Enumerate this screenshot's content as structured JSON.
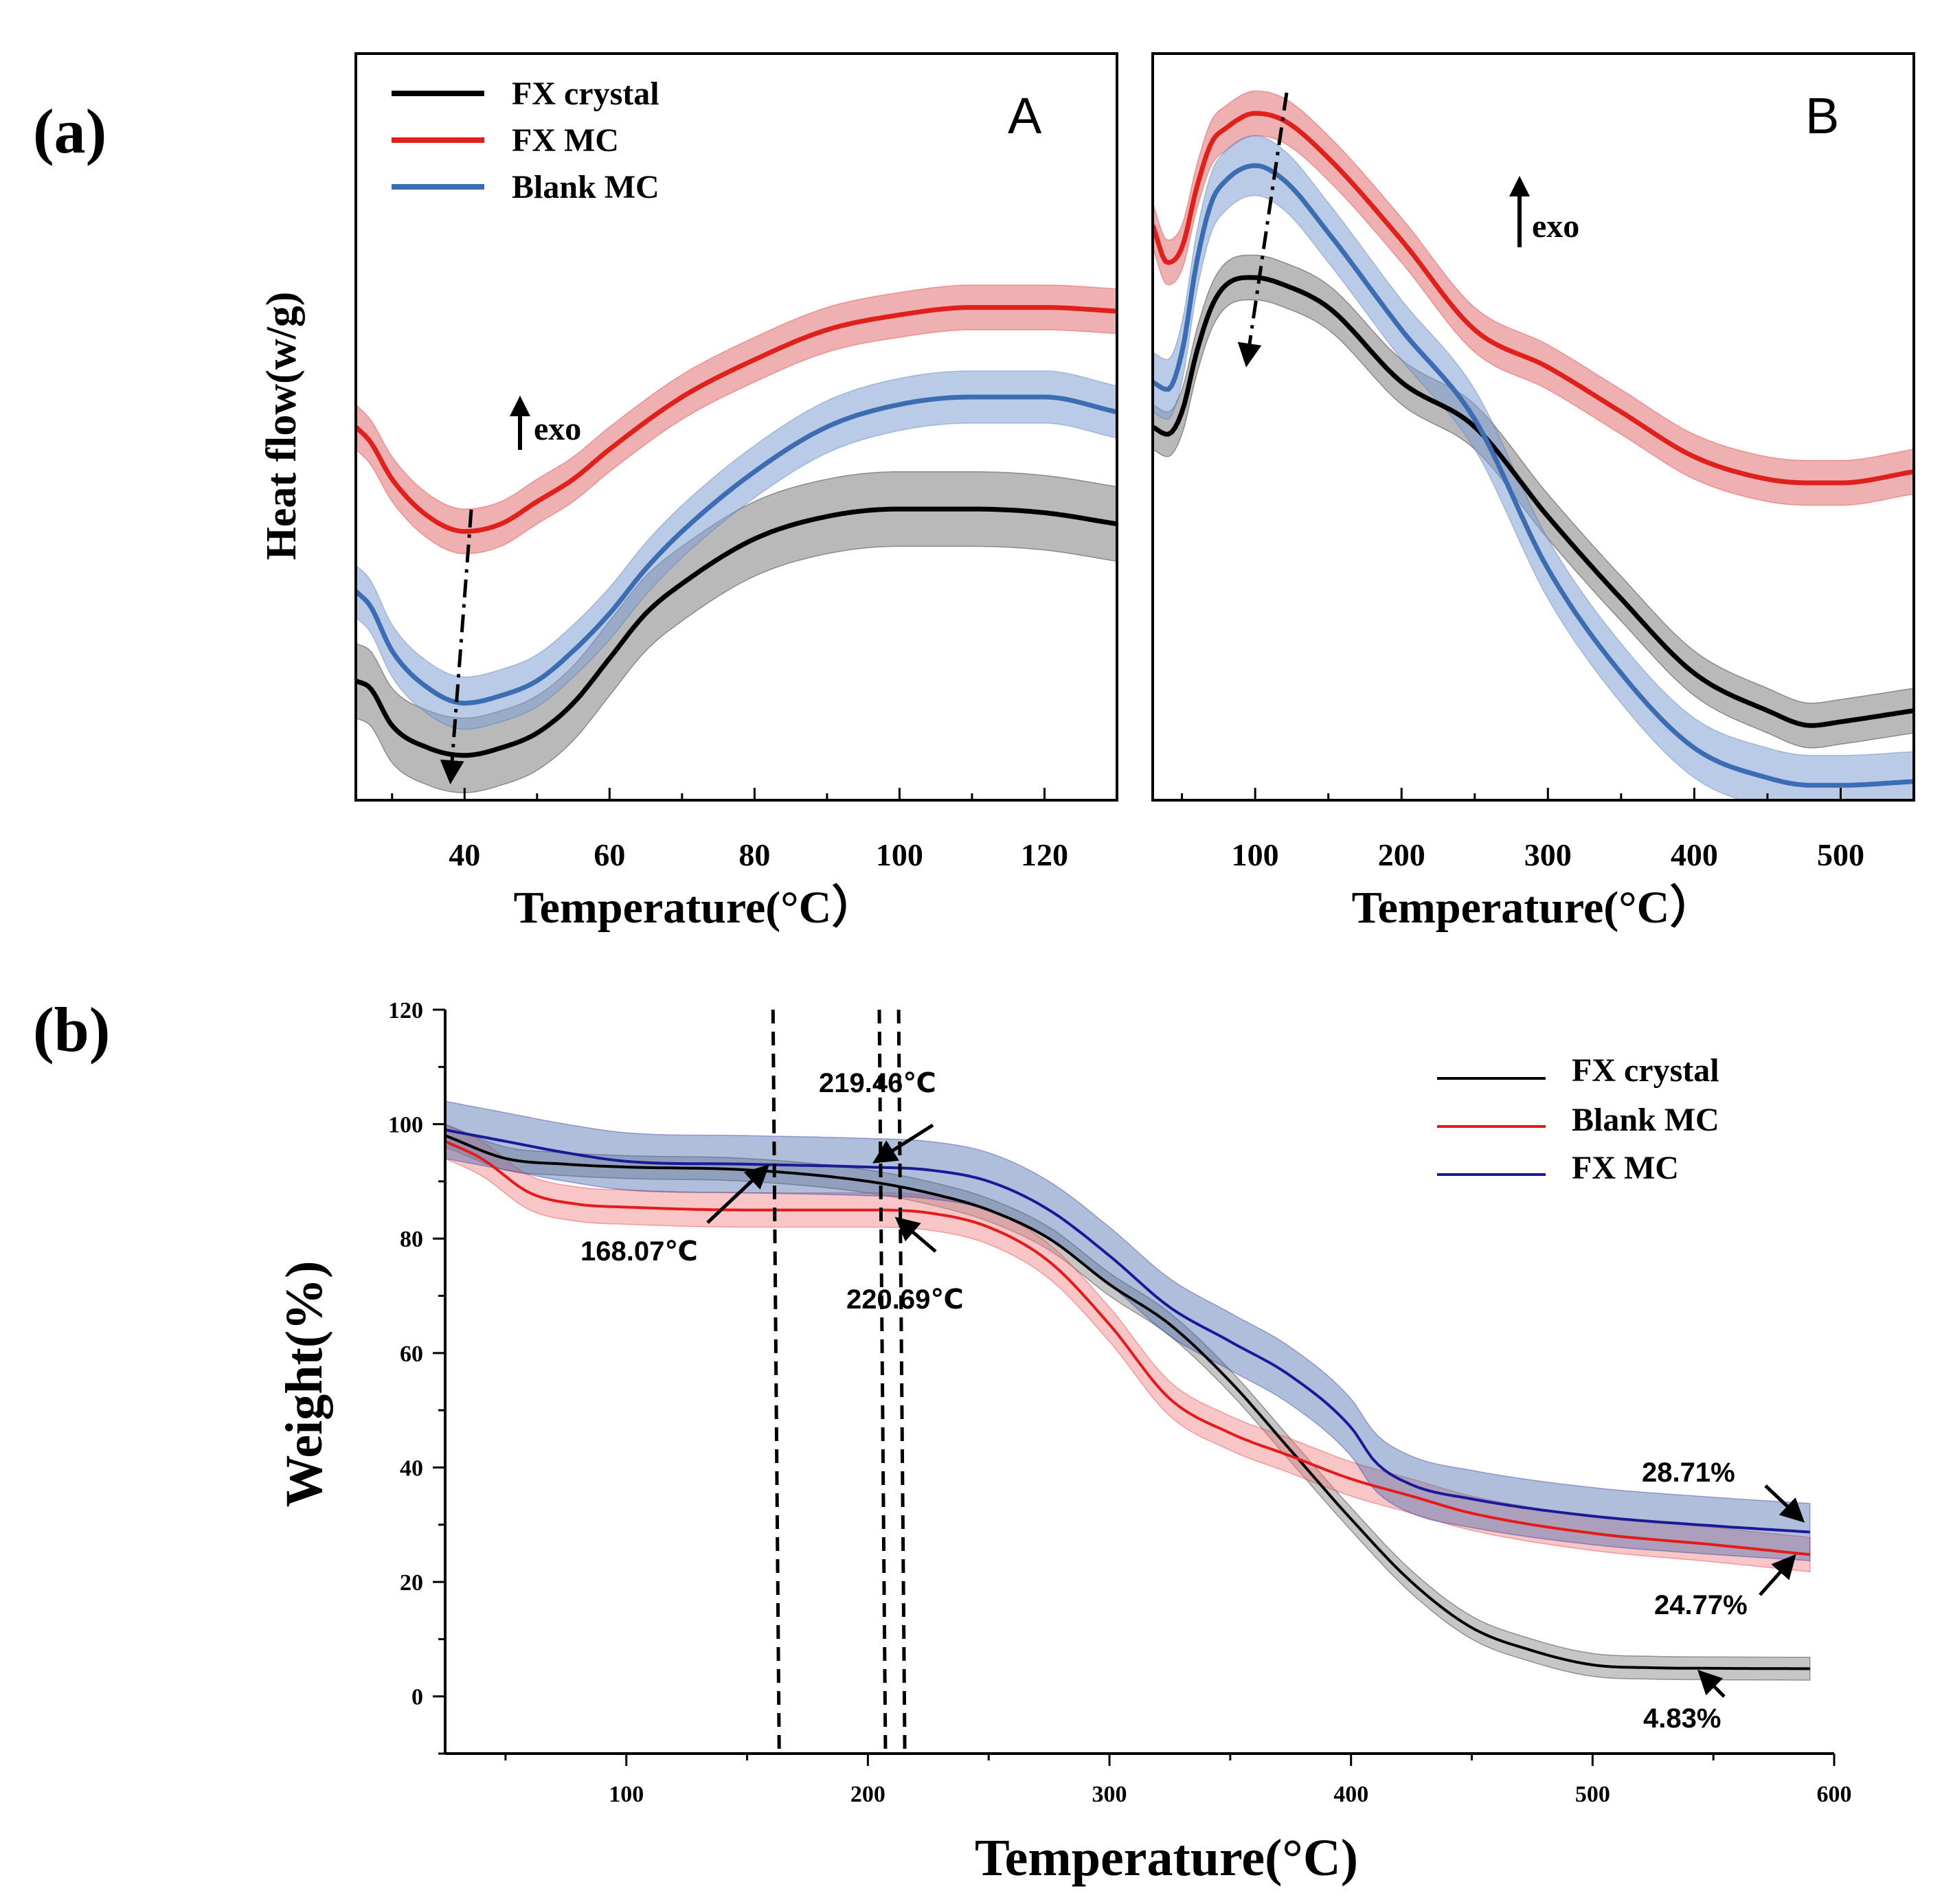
{
  "panel_labels": {
    "a": "(a)",
    "b": "(b)"
  },
  "chart_data": [
    {
      "id": "A",
      "type": "line",
      "subplot_label": "A",
      "title": "",
      "xlabel": "Temperature(°C）",
      "ylabel": "Heat flow(w/g)",
      "xlim": [
        25,
        130
      ],
      "ylim": [
        0,
        100
      ],
      "xticks": [
        40,
        60,
        80,
        100,
        120
      ],
      "yticks": [],
      "legend": {
        "position": "top-left",
        "entries": [
          "FX crystal",
          "FX MC",
          "Blank MC"
        ]
      },
      "annotation": "exo",
      "series": [
        {
          "name": "FX crystal",
          "color": "#000000",
          "fill": "#7f7f7f",
          "band": 5,
          "x": [
            25,
            27,
            30,
            35,
            40,
            45,
            50,
            55,
            60,
            65,
            70,
            80,
            90,
            100,
            105,
            110,
            120,
            130
          ],
          "y": [
            16,
            15,
            10,
            7,
            6,
            7,
            9,
            13,
            19,
            25,
            29,
            35,
            38,
            39,
            39,
            39,
            38.5,
            37
          ]
        },
        {
          "name": "FX MC",
          "color": "#e0201b",
          "fill": "#e07070",
          "band": 3,
          "x": [
            25,
            27,
            30,
            35,
            40,
            45,
            50,
            55,
            60,
            70,
            80,
            90,
            100,
            110,
            120,
            130
          ],
          "y": [
            50,
            48,
            43,
            38,
            36,
            37,
            40,
            43,
            47,
            54,
            59,
            63,
            65,
            66,
            66,
            65.5
          ]
        },
        {
          "name": "Blank MC",
          "color": "#3c6db3",
          "fill": "#7fa1d3",
          "band": 3.5,
          "x": [
            25,
            27,
            30,
            35,
            40,
            45,
            50,
            55,
            60,
            65,
            70,
            80,
            90,
            100,
            110,
            120,
            130
          ],
          "y": [
            28,
            26,
            20,
            15,
            13,
            14,
            16,
            20,
            25,
            31,
            36,
            44,
            50,
            53,
            54,
            54,
            52
          ]
        }
      ]
    },
    {
      "id": "B",
      "type": "line",
      "subplot_label": "B",
      "title": "",
      "xlabel": "Temperature(°C）",
      "ylabel": "",
      "xlim": [
        30,
        550
      ],
      "ylim": [
        0,
        100
      ],
      "xticks": [
        100,
        200,
        300,
        400,
        500
      ],
      "yticks": [],
      "annotation": "exo",
      "series": [
        {
          "name": "FX crystal",
          "color": "#000000",
          "fill": "#7f7f7f",
          "band": 3,
          "x": [
            30,
            40,
            50,
            60,
            70,
            80,
            100,
            120,
            150,
            200,
            250,
            300,
            350,
            400,
            450,
            480,
            500,
            550
          ],
          "y": [
            50,
            49,
            52,
            60,
            66,
            69,
            70,
            69,
            66,
            56,
            50,
            38,
            27,
            17,
            12,
            10,
            10.5,
            12
          ]
        },
        {
          "name": "FX MC",
          "color": "#e0201b",
          "fill": "#e07070",
          "band": 3,
          "x": [
            30,
            40,
            50,
            60,
            70,
            80,
            100,
            120,
            150,
            200,
            250,
            300,
            350,
            400,
            450,
            480,
            500,
            550
          ],
          "y": [
            77,
            72,
            74,
            82,
            88,
            90,
            92,
            91,
            86,
            75,
            63,
            58,
            52,
            46,
            43,
            42.5,
            42.5,
            44
          ]
        },
        {
          "name": "Blank MC",
          "color": "#3c6db3",
          "fill": "#7fa1d3",
          "band": 4,
          "x": [
            30,
            40,
            50,
            60,
            70,
            80,
            100,
            120,
            150,
            200,
            250,
            300,
            350,
            400,
            450,
            480,
            500,
            550
          ],
          "y": [
            56,
            55,
            60,
            72,
            80,
            83,
            85,
            83,
            76,
            63,
            51,
            31,
            17,
            7,
            3,
            2,
            2,
            2.5
          ]
        }
      ]
    },
    {
      "id": "b",
      "type": "line",
      "title": "",
      "xlabel": "Temperature(°C)",
      "ylabel": "Weight(%)",
      "xlim": [
        25,
        600
      ],
      "ylim": [
        -10,
        120
      ],
      "xticks": [
        100,
        200,
        300,
        400,
        500,
        600
      ],
      "yticks": [
        0,
        20,
        40,
        60,
        80,
        100,
        120
      ],
      "legend": {
        "position": "top-right",
        "entries": [
          "FX crystal",
          "Blank MC",
          "FX MC"
        ]
      },
      "series": [
        {
          "name": "FX crystal",
          "color": "#000000",
          "fill": "#808080",
          "band": 2,
          "x": [
            25,
            50,
            75,
            100,
            150,
            200,
            225,
            250,
            275,
            300,
            325,
            350,
            375,
            400,
            425,
            450,
            475,
            500,
            525,
            550,
            590
          ],
          "y": [
            98,
            94,
            93,
            92.5,
            92,
            90,
            88,
            85,
            80,
            72,
            65,
            55,
            43,
            31,
            20,
            12,
            8,
            5.5,
            5,
            4.9,
            4.83
          ]
        },
        {
          "name": "Blank MC",
          "color": "#e51a1a",
          "fill": "#f08080",
          "band": 3,
          "x": [
            25,
            40,
            60,
            80,
            100,
            150,
            200,
            225,
            250,
            275,
            300,
            325,
            350,
            375,
            400,
            425,
            450,
            500,
            550,
            590
          ],
          "y": [
            97,
            94,
            88,
            86,
            85.5,
            85,
            85,
            84.5,
            82,
            76,
            65,
            52,
            46,
            42,
            38,
            35,
            32,
            28.5,
            26.5,
            24.77
          ]
        },
        {
          "name": "FX MC",
          "color": "#1a1a99",
          "fill": "#4d6fb0",
          "band": 5,
          "x": [
            25,
            50,
            75,
            100,
            150,
            200,
            225,
            250,
            275,
            300,
            325,
            350,
            375,
            400,
            410,
            425,
            450,
            500,
            550,
            590
          ],
          "y": [
            99,
            97,
            95,
            93.5,
            93,
            92.5,
            92,
            90,
            85,
            77,
            68,
            62,
            56,
            47,
            41,
            37,
            34.5,
            31.5,
            29.8,
            28.71
          ]
        }
      ],
      "vlines": [
        163,
        207,
        215
      ],
      "annotations": [
        {
          "text": "219.46℃"
        },
        {
          "text": "168.07℃"
        },
        {
          "text": "220.69℃"
        },
        {
          "text": "28.71%"
        },
        {
          "text": "24.77%"
        },
        {
          "text": "4.83%"
        }
      ]
    }
  ]
}
